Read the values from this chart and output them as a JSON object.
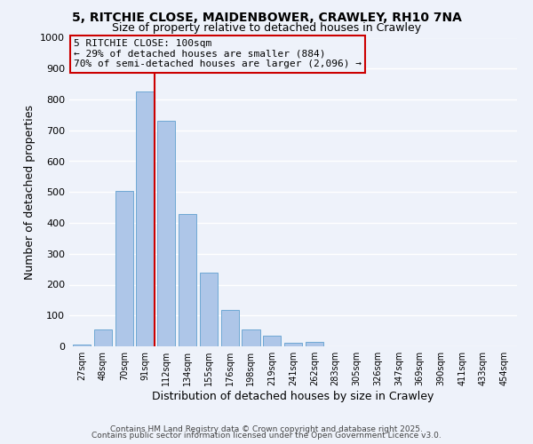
{
  "title_line1": "5, RITCHIE CLOSE, MAIDENBOWER, CRAWLEY, RH10 7NA",
  "title_line2": "Size of property relative to detached houses in Crawley",
  "xlabel": "Distribution of detached houses by size in Crawley",
  "ylabel": "Number of detached properties",
  "bar_labels": [
    "27sqm",
    "48sqm",
    "70sqm",
    "91sqm",
    "112sqm",
    "134sqm",
    "155sqm",
    "176sqm",
    "198sqm",
    "219sqm",
    "241sqm",
    "262sqm",
    "283sqm",
    "305sqm",
    "326sqm",
    "347sqm",
    "369sqm",
    "390sqm",
    "411sqm",
    "433sqm",
    "454sqm"
  ],
  "bar_values": [
    5,
    55,
    505,
    825,
    730,
    430,
    240,
    118,
    55,
    35,
    12,
    15,
    0,
    0,
    0,
    0,
    0,
    0,
    0,
    0,
    0
  ],
  "bar_color": "#aec6e8",
  "bar_edgecolor": "#6fa8d4",
  "vline_index": 3,
  "vline_color": "#cc0000",
  "annotation_line1": "5 RITCHIE CLOSE: 100sqm",
  "annotation_line2": "← 29% of detached houses are smaller (884)",
  "annotation_line3": "70% of semi-detached houses are larger (2,096) →",
  "annotation_box_edgecolor": "#cc0000",
  "ylim": [
    0,
    1000
  ],
  "yticks": [
    0,
    100,
    200,
    300,
    400,
    500,
    600,
    700,
    800,
    900,
    1000
  ],
  "footer_line1": "Contains HM Land Registry data © Crown copyright and database right 2025.",
  "footer_line2": "Contains public sector information licensed under the Open Government Licence v3.0.",
  "bg_color": "#eef2fa",
  "grid_color": "#ffffff"
}
